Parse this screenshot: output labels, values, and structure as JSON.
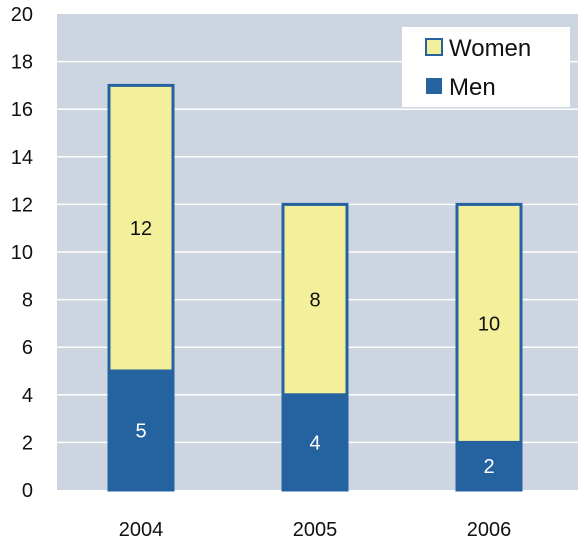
{
  "chart_data": {
    "type": "bar",
    "stacked": true,
    "categories": [
      "2004",
      "2005",
      "2006"
    ],
    "series": [
      {
        "name": "Men",
        "values": [
          5,
          4,
          2
        ],
        "color": "#2563a0"
      },
      {
        "name": "Women",
        "values": [
          12,
          8,
          10
        ],
        "color": "#f4ef9a"
      }
    ],
    "ylim": [
      0,
      20
    ],
    "yticks": [
      "0",
      "2",
      "4",
      "6",
      "8",
      "10",
      "12",
      "14",
      "16",
      "18",
      "20"
    ],
    "grid": true,
    "legend": {
      "placement": "top-right",
      "order": [
        "Women",
        "Men"
      ]
    },
    "colors": {
      "plot_background": "#cdd5e0",
      "gridline": "#ffffff",
      "bar_outline": "#2563a0",
      "label_on_dark": "#ffffff",
      "label_on_light": "#111111"
    }
  }
}
